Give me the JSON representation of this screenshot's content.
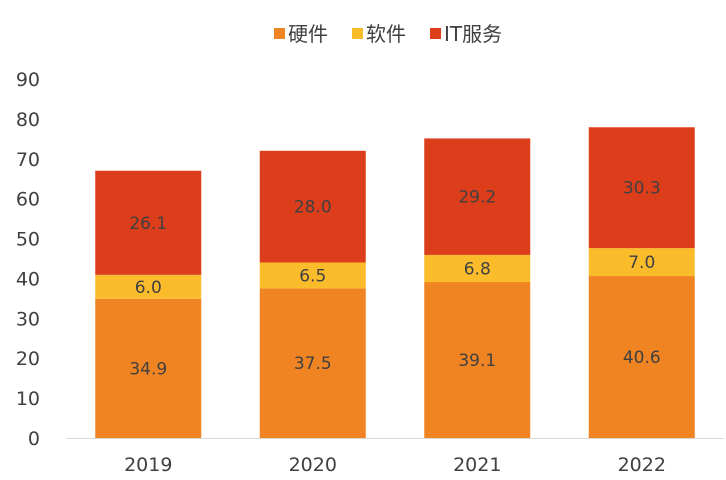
{
  "chart_data": {
    "type": "bar",
    "stacked": true,
    "categories": [
      "2019",
      "2020",
      "2021",
      "2022"
    ],
    "series": [
      {
        "name": "硬件",
        "color": "#F08423",
        "values": [
          34.9,
          37.5,
          39.1,
          40.6
        ]
      },
      {
        "name": "软件",
        "color": "#FBBC2C",
        "values": [
          6.0,
          6.5,
          6.8,
          7.0
        ]
      },
      {
        "name": "IT服务",
        "color": "#DC3D1A",
        "values": [
          26.1,
          28.0,
          29.2,
          30.3
        ]
      }
    ],
    "ylim": [
      0,
      90
    ],
    "yticks": [
      0,
      10,
      20,
      30,
      40,
      50,
      60,
      70,
      80,
      90
    ],
    "legend_position": "top-center",
    "grid": false,
    "data_labels": true
  }
}
